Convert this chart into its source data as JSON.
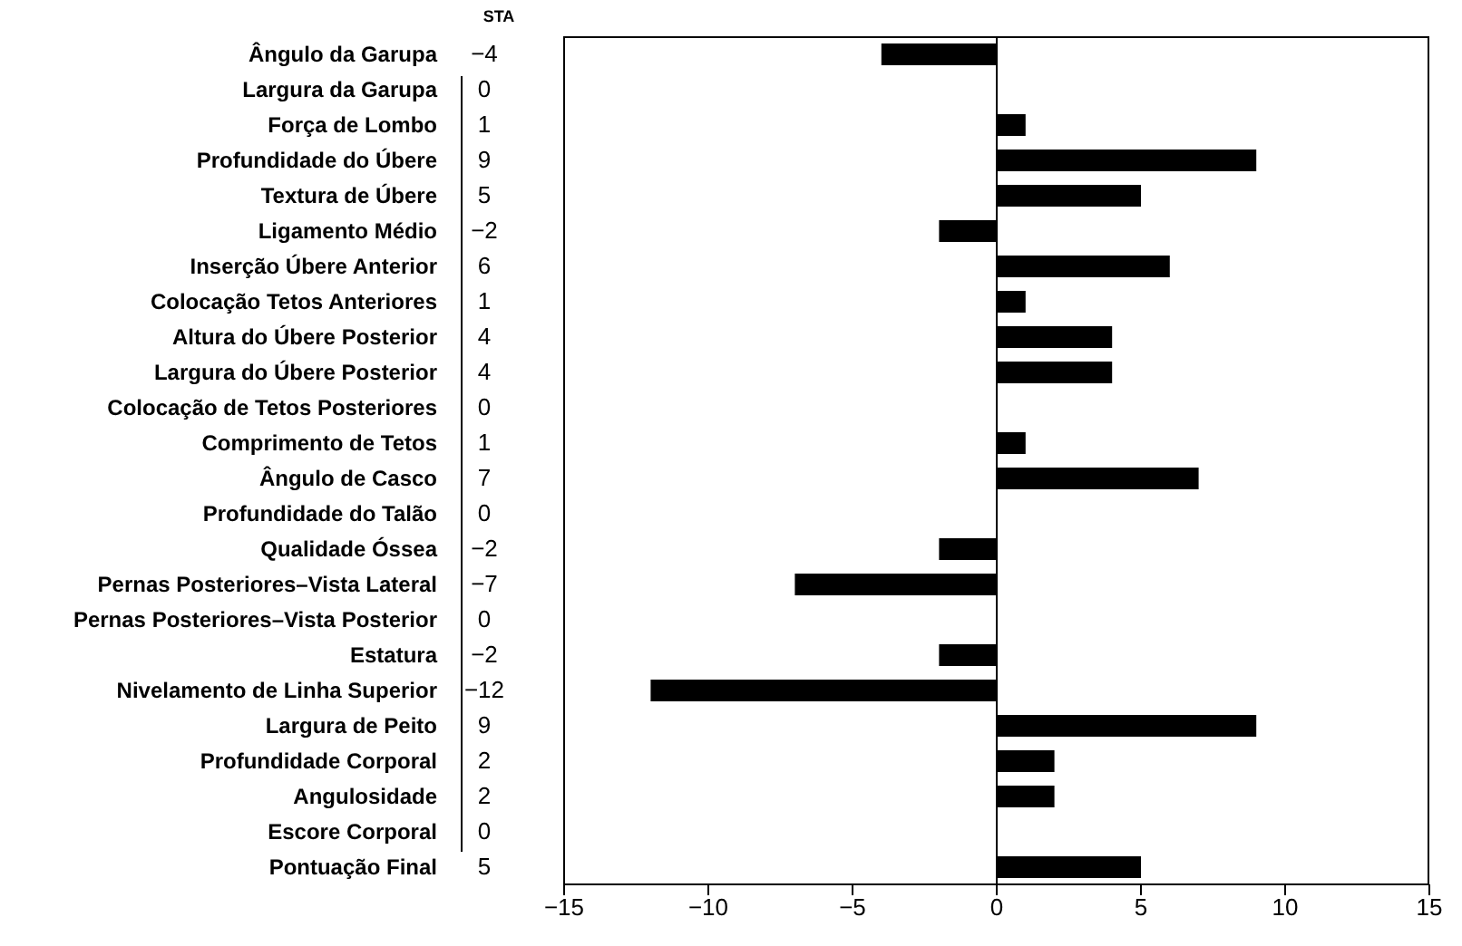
{
  "chart_data": {
    "type": "bar",
    "orientation": "horizontal",
    "annotations": [
      "STA"
    ],
    "categories": [
      "Ângulo da Garupa",
      "Largura da Garupa",
      "Força de Lombo",
      "Profundidade do Úbere",
      "Textura de Úbere",
      "Ligamento Médio",
      "Inserção Úbere Anterior",
      "Colocação Tetos Anteriores",
      "Altura do Úbere Posterior",
      "Largura do Úbere Posterior",
      "Colocação de Tetos Posteriores",
      "Comprimento de Tetos",
      "Ângulo de Casco",
      "Profundidade do Talão",
      "Qualidade Óssea",
      "Pernas Posteriores–Vista Lateral",
      "Pernas Posteriores–Vista Posterior",
      "Estatura",
      "Nivelamento de Linha Superior",
      "Largura de Peito",
      "Profundidade Corporal",
      "Angulosidade",
      "Escore Corporal",
      "Pontuação Final"
    ],
    "values": [
      -4,
      0,
      1,
      9,
      5,
      -2,
      6,
      1,
      4,
      4,
      0,
      1,
      7,
      0,
      -2,
      -7,
      0,
      -2,
      -12,
      9,
      2,
      2,
      0,
      5
    ],
    "color": "#000000",
    "data_labels": true,
    "xlim": [
      -15,
      15
    ],
    "xticks": [
      -15,
      -10,
      -5,
      0,
      5,
      10,
      15
    ],
    "ref_lines": [
      {
        "axis": "x",
        "value": 0,
        "color": "#000000"
      }
    ]
  }
}
